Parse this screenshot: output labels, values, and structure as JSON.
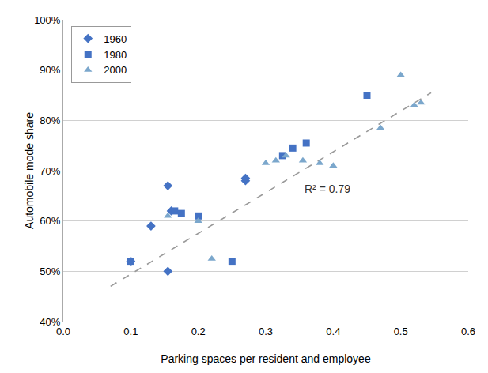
{
  "chart_data": {
    "type": "scatter",
    "xlabel": "Parking spaces per resident and employee",
    "ylabel": "Automobile mode share",
    "xlim": [
      0.0,
      0.6
    ],
    "ylim": [
      0.4,
      1.0
    ],
    "xticks": [
      {
        "value": 0.0,
        "label": "0.0"
      },
      0.1,
      0.2,
      0.3,
      0.4,
      0.5,
      0.6
    ],
    "yticks": [
      {
        "value": 0.4,
        "label": "40%"
      },
      {
        "value": 0.5,
        "label": "50%"
      },
      {
        "value": 0.6,
        "label": "60%"
      },
      {
        "value": 0.7,
        "label": "70%"
      },
      {
        "value": 0.8,
        "label": "80%"
      },
      {
        "value": 0.9,
        "label": "90%"
      },
      {
        "value": 1.0,
        "label": "100%"
      }
    ],
    "series": [
      {
        "name": "1960",
        "color": "#4472c4",
        "marker": "diamond",
        "x": [
          0.1,
          0.13,
          0.155,
          0.16,
          0.155,
          0.27,
          0.27
        ],
        "values": [
          0.52,
          0.59,
          0.5,
          0.62,
          0.67,
          0.68,
          0.685
        ]
      },
      {
        "name": "1980",
        "color": "#4472c4",
        "marker": "square",
        "x": [
          0.1,
          0.165,
          0.175,
          0.2,
          0.25,
          0.325,
          0.34,
          0.36,
          0.45
        ],
        "values": [
          0.52,
          0.62,
          0.615,
          0.61,
          0.52,
          0.73,
          0.745,
          0.755,
          0.85
        ]
      },
      {
        "name": "2000",
        "color": "#7ba7cc",
        "marker": "triangle-up",
        "x": [
          0.155,
          0.2,
          0.22,
          0.3,
          0.315,
          0.33,
          0.355,
          0.38,
          0.4,
          0.47,
          0.5,
          0.52,
          0.53
        ],
        "values": [
          0.61,
          0.6,
          0.525,
          0.715,
          0.72,
          0.73,
          0.72,
          0.715,
          0.71,
          0.785,
          0.89,
          0.83,
          0.835
        ]
      }
    ],
    "trendline": {
      "x": [
        0.07,
        0.545
      ],
      "values": [
        0.47,
        0.855
      ],
      "color": "#999999",
      "line_style": "dashed"
    },
    "annotations": [
      {
        "text": "R² = 0.79",
        "x": 0.355,
        "y": 0.648
      }
    ],
    "grid": "y",
    "legend": "upper left"
  }
}
